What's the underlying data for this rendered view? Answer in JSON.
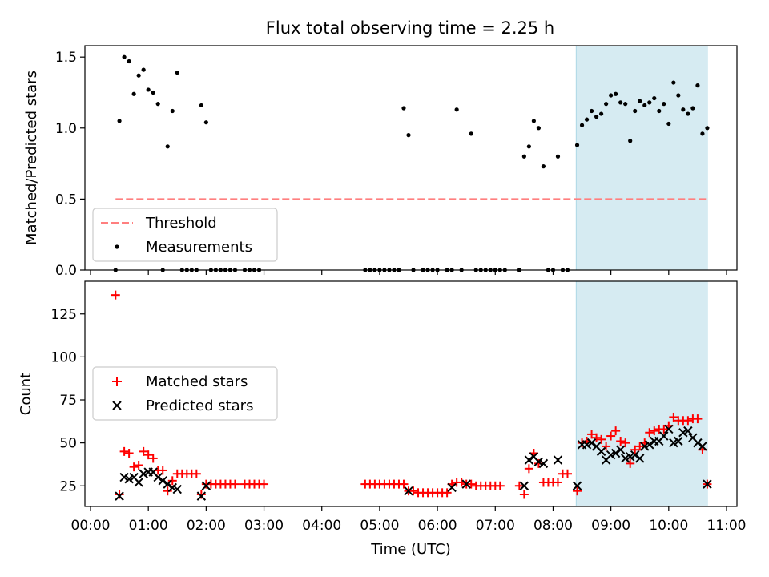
{
  "chart_data": [
    {
      "type": "scatter",
      "title": "Flux total observing time = 2.25 h",
      "xlabel": "",
      "ylabel": "Matched/Predicted stars",
      "xlim": [
        "00:00",
        "11:00"
      ],
      "ylim": [
        0,
        1.58
      ],
      "yticks": [
        0.0,
        0.5,
        1.0,
        1.5
      ],
      "ytick_labels": [
        "0.0",
        "0.5",
        "1.0",
        "1.5"
      ],
      "grid": false,
      "legend_position": "lower-left",
      "legend": [
        {
          "label": "Threshold",
          "marker": "dashed-line",
          "color": "#ff7f7f"
        },
        {
          "label": "Measurements",
          "marker": "dot",
          "color": "#000000"
        }
      ],
      "highlight_span": {
        "x": [
          "08:24",
          "10:40"
        ],
        "color": "#add8e6"
      },
      "threshold": {
        "y": 0.5,
        "x": [
          "00:26",
          "10:40"
        ],
        "color": "#ff7f7f"
      },
      "series": [
        {
          "name": "Measurements",
          "color": "#000000",
          "points": [
            [
              "00:26",
              0
            ],
            [
              "00:30",
              1.05
            ],
            [
              "00:35",
              1.5
            ],
            [
              "00:40",
              1.47
            ],
            [
              "00:45",
              1.24
            ],
            [
              "00:50",
              1.37
            ],
            [
              "00:55",
              1.41
            ],
            [
              "01:00",
              1.27
            ],
            [
              "01:05",
              1.25
            ],
            [
              "01:10",
              1.17
            ],
            [
              "01:15",
              0
            ],
            [
              "01:20",
              0.87
            ],
            [
              "01:25",
              1.12
            ],
            [
              "01:30",
              1.39
            ],
            [
              "01:35",
              0
            ],
            [
              "01:40",
              0
            ],
            [
              "01:45",
              0
            ],
            [
              "01:50",
              0
            ],
            [
              "01:55",
              1.16
            ],
            [
              "02:00",
              1.04
            ],
            [
              "02:05",
              0
            ],
            [
              "02:10",
              0
            ],
            [
              "02:15",
              0
            ],
            [
              "02:20",
              0
            ],
            [
              "02:25",
              0
            ],
            [
              "02:30",
              0
            ],
            [
              "02:40",
              0
            ],
            [
              "02:45",
              0
            ],
            [
              "02:50",
              0
            ],
            [
              "02:55",
              0
            ],
            [
              "04:45",
              0
            ],
            [
              "04:50",
              0
            ],
            [
              "04:55",
              0
            ],
            [
              "05:00",
              0
            ],
            [
              "05:05",
              0
            ],
            [
              "05:10",
              0
            ],
            [
              "05:15",
              0
            ],
            [
              "05:20",
              0
            ],
            [
              "05:25",
              1.14
            ],
            [
              "05:30",
              0.95
            ],
            [
              "05:35",
              0
            ],
            [
              "05:45",
              0
            ],
            [
              "05:50",
              0
            ],
            [
              "05:55",
              0
            ],
            [
              "06:00",
              0
            ],
            [
              "06:10",
              0
            ],
            [
              "06:15",
              0
            ],
            [
              "06:20",
              1.13
            ],
            [
              "06:25",
              0
            ],
            [
              "06:35",
              0.96
            ],
            [
              "06:40",
              0
            ],
            [
              "06:45",
              0
            ],
            [
              "06:50",
              0
            ],
            [
              "06:55",
              0
            ],
            [
              "07:00",
              0
            ],
            [
              "07:05",
              0
            ],
            [
              "07:10",
              0
            ],
            [
              "07:25",
              0
            ],
            [
              "07:30",
              0.8
            ],
            [
              "07:35",
              0.87
            ],
            [
              "07:40",
              1.05
            ],
            [
              "07:45",
              1.0
            ],
            [
              "07:50",
              0.73
            ],
            [
              "07:55",
              0
            ],
            [
              "08:00",
              0
            ],
            [
              "08:05",
              0.8
            ],
            [
              "08:10",
              0
            ],
            [
              "08:15",
              0
            ],
            [
              "08:25",
              0.88
            ],
            [
              "08:30",
              1.02
            ],
            [
              "08:35",
              1.06
            ],
            [
              "08:40",
              1.12
            ],
            [
              "08:45",
              1.08
            ],
            [
              "08:50",
              1.1
            ],
            [
              "08:55",
              1.17
            ],
            [
              "09:00",
              1.23
            ],
            [
              "09:05",
              1.24
            ],
            [
              "09:10",
              1.18
            ],
            [
              "09:15",
              1.17
            ],
            [
              "09:20",
              0.91
            ],
            [
              "09:25",
              1.12
            ],
            [
              "09:30",
              1.19
            ],
            [
              "09:35",
              1.16
            ],
            [
              "09:40",
              1.18
            ],
            [
              "09:45",
              1.21
            ],
            [
              "09:50",
              1.12
            ],
            [
              "09:55",
              1.17
            ],
            [
              "10:00",
              1.03
            ],
            [
              "10:05",
              1.32
            ],
            [
              "10:10",
              1.23
            ],
            [
              "10:15",
              1.13
            ],
            [
              "10:20",
              1.1
            ],
            [
              "10:25",
              1.14
            ],
            [
              "10:30",
              1.3
            ],
            [
              "10:35",
              0.96
            ],
            [
              "10:40",
              1.0
            ]
          ]
        }
      ]
    },
    {
      "type": "scatter",
      "title": "",
      "xlabel": "Time (UTC)",
      "ylabel": "Count",
      "xlim": [
        "00:00",
        "11:00"
      ],
      "ylim": [
        13,
        144
      ],
      "yticks": [
        25,
        50,
        75,
        100,
        125
      ],
      "ytick_labels": [
        "25",
        "50",
        "75",
        "100",
        "125"
      ],
      "xticks": [
        "00:00",
        "01:00",
        "02:00",
        "03:00",
        "04:00",
        "05:00",
        "06:00",
        "07:00",
        "08:00",
        "09:00",
        "10:00",
        "11:00"
      ],
      "grid": false,
      "legend_position": "center-left",
      "legend": [
        {
          "label": "Matched stars",
          "marker": "plus",
          "color": "#ff0000"
        },
        {
          "label": "Predicted stars",
          "marker": "x",
          "color": "#000000"
        }
      ],
      "highlight_span": {
        "x": [
          "08:24",
          "10:40"
        ],
        "color": "#add8e6"
      },
      "series": [
        {
          "name": "Matched stars",
          "color": "#ff0000",
          "points": [
            [
              "00:26",
              136
            ],
            [
              "00:30",
              20
            ],
            [
              "00:35",
              45
            ],
            [
              "00:40",
              44
            ],
            [
              "00:45",
              36
            ],
            [
              "00:50",
              37
            ],
            [
              "00:55",
              45
            ],
            [
              "01:00",
              43
            ],
            [
              "01:05",
              41
            ],
            [
              "01:10",
              34
            ],
            [
              "01:15",
              34
            ],
            [
              "01:20",
              22
            ],
            [
              "01:25",
              28
            ],
            [
              "01:30",
              32
            ],
            [
              "01:35",
              32
            ],
            [
              "01:40",
              32
            ],
            [
              "01:45",
              32
            ],
            [
              "01:50",
              32
            ],
            [
              "01:55",
              20
            ],
            [
              "02:00",
              26
            ],
            [
              "02:05",
              26
            ],
            [
              "02:10",
              26
            ],
            [
              "02:15",
              26
            ],
            [
              "02:20",
              26
            ],
            [
              "02:25",
              26
            ],
            [
              "02:30",
              26
            ],
            [
              "02:40",
              26
            ],
            [
              "02:45",
              26
            ],
            [
              "02:50",
              26
            ],
            [
              "02:55",
              26
            ],
            [
              "03:00",
              26
            ],
            [
              "04:45",
              26
            ],
            [
              "04:50",
              26
            ],
            [
              "04:55",
              26
            ],
            [
              "05:00",
              26
            ],
            [
              "05:05",
              26
            ],
            [
              "05:10",
              26
            ],
            [
              "05:15",
              26
            ],
            [
              "05:20",
              26
            ],
            [
              "05:25",
              26
            ],
            [
              "05:30",
              22
            ],
            [
              "05:35",
              22
            ],
            [
              "05:40",
              21
            ],
            [
              "05:45",
              21
            ],
            [
              "05:50",
              21
            ],
            [
              "05:55",
              21
            ],
            [
              "06:00",
              21
            ],
            [
              "06:05",
              21
            ],
            [
              "06:10",
              21
            ],
            [
              "06:15",
              26
            ],
            [
              "06:20",
              27
            ],
            [
              "06:25",
              27
            ],
            [
              "06:30",
              26
            ],
            [
              "06:35",
              26
            ],
            [
              "06:40",
              25
            ],
            [
              "06:45",
              25
            ],
            [
              "06:50",
              25
            ],
            [
              "06:55",
              25
            ],
            [
              "07:00",
              25
            ],
            [
              "07:05",
              25
            ],
            [
              "07:25",
              25
            ],
            [
              "07:30",
              20
            ],
            [
              "07:35",
              35
            ],
            [
              "07:40",
              44
            ],
            [
              "07:45",
              38
            ],
            [
              "07:50",
              27
            ],
            [
              "07:55",
              27
            ],
            [
              "08:00",
              27
            ],
            [
              "08:05",
              27
            ],
            [
              "08:10",
              32
            ],
            [
              "08:15",
              32
            ],
            [
              "08:25",
              22
            ],
            [
              "08:30",
              50
            ],
            [
              "08:35",
              51
            ],
            [
              "08:40",
              55
            ],
            [
              "08:45",
              53
            ],
            [
              "08:50",
              52
            ],
            [
              "08:55",
              48
            ],
            [
              "09:00",
              54
            ],
            [
              "09:05",
              57
            ],
            [
              "09:10",
              51
            ],
            [
              "09:15",
              50
            ],
            [
              "09:20",
              38
            ],
            [
              "09:25",
              46
            ],
            [
              "09:30",
              48
            ],
            [
              "09:35",
              50
            ],
            [
              "09:40",
              56
            ],
            [
              "09:45",
              57
            ],
            [
              "09:50",
              58
            ],
            [
              "09:55",
              58
            ],
            [
              "10:00",
              60
            ],
            [
              "10:05",
              65
            ],
            [
              "10:10",
              63
            ],
            [
              "10:15",
              63
            ],
            [
              "10:20",
              63
            ],
            [
              "10:25",
              64
            ],
            [
              "10:30",
              64
            ],
            [
              "10:35",
              46
            ],
            [
              "10:40",
              26
            ]
          ]
        },
        {
          "name": "Predicted stars",
          "color": "#000000",
          "points": [
            [
              "00:30",
              19
            ],
            [
              "00:35",
              30
            ],
            [
              "00:40",
              29
            ],
            [
              "00:45",
              30
            ],
            [
              "00:50",
              27
            ],
            [
              "00:55",
              32
            ],
            [
              "01:00",
              33
            ],
            [
              "01:05",
              33
            ],
            [
              "01:10",
              30
            ],
            [
              "01:15",
              28
            ],
            [
              "01:20",
              26
            ],
            [
              "01:25",
              24
            ],
            [
              "01:30",
              23
            ],
            [
              "01:55",
              19
            ],
            [
              "02:00",
              25
            ],
            [
              "05:30",
              22
            ],
            [
              "06:15",
              24
            ],
            [
              "06:30",
              26
            ],
            [
              "07:30",
              25
            ],
            [
              "07:35",
              40
            ],
            [
              "07:40",
              42
            ],
            [
              "07:45",
              39
            ],
            [
              "07:50",
              38
            ],
            [
              "08:05",
              40
            ],
            [
              "08:25",
              25
            ],
            [
              "08:30",
              49
            ],
            [
              "08:35",
              49
            ],
            [
              "08:40",
              50
            ],
            [
              "08:45",
              48
            ],
            [
              "08:50",
              45
            ],
            [
              "08:55",
              40
            ],
            [
              "09:00",
              43
            ],
            [
              "09:05",
              44
            ],
            [
              "09:10",
              46
            ],
            [
              "09:15",
              41
            ],
            [
              "09:20",
              42
            ],
            [
              "09:25",
              43
            ],
            [
              "09:30",
              41
            ],
            [
              "09:35",
              48
            ],
            [
              "09:40",
              49
            ],
            [
              "09:45",
              51
            ],
            [
              "09:50",
              51
            ],
            [
              "09:55",
              54
            ],
            [
              "10:00",
              58
            ],
            [
              "10:05",
              50
            ],
            [
              "10:10",
              51
            ],
            [
              "10:15",
              56
            ],
            [
              "10:20",
              57
            ],
            [
              "10:25",
              53
            ],
            [
              "10:30",
              50
            ],
            [
              "10:35",
              48
            ],
            [
              "10:40",
              26
            ]
          ]
        }
      ]
    }
  ]
}
